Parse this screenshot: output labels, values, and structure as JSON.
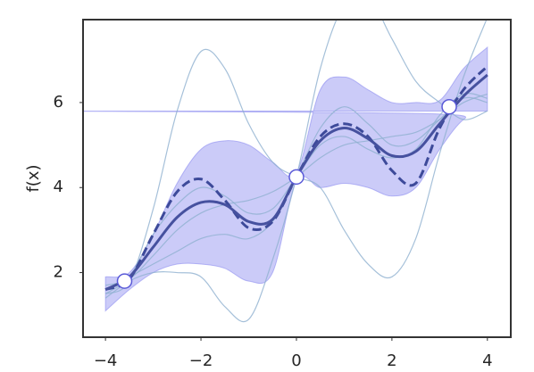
{
  "chart_data": {
    "type": "line",
    "ylabel": "f(x)",
    "x": [
      -4,
      -3.5,
      -3,
      -2.5,
      -2,
      -1.5,
      -1,
      -0.5,
      0,
      0.5,
      1,
      1.5,
      2,
      2.5,
      3,
      3.5,
      4
    ],
    "band": {
      "color": "#8c8cf0",
      "lower": [
        1.1,
        1.6,
        2.0,
        2.2,
        2.2,
        2.1,
        1.8,
        2.0,
        4.15,
        4.0,
        4.1,
        4.0,
        3.8,
        4.0,
        4.9,
        5.6,
        5.8
      ],
      "upper": [
        1.9,
        2.0,
        2.9,
        4.1,
        4.9,
        5.1,
        5.0,
        4.6,
        4.35,
        6.3,
        6.6,
        6.3,
        6.0,
        6.0,
        6.05,
        6.8,
        7.3
      ]
    },
    "series": [
      {
        "style": "thin",
        "color": "#8fb0d0",
        "values": [
          1.5,
          1.8,
          3.5,
          5.8,
          7.2,
          6.8,
          5.5,
          4.6,
          4.25,
          4.0,
          3.0,
          2.2,
          1.9,
          2.8,
          4.8,
          6.6,
          8.0
        ]
      },
      {
        "style": "thin",
        "color": "#8fb0d0",
        "values": [
          1.4,
          1.8,
          2.0,
          2.0,
          1.9,
          1.2,
          0.9,
          2.3,
          4.25,
          6.8,
          8.3,
          8.5,
          7.5,
          6.5,
          6.0,
          5.6,
          5.8
        ]
      },
      {
        "style": "thin",
        "color": "#8fb0d0",
        "values": [
          1.7,
          1.85,
          2.4,
          3.0,
          3.4,
          3.6,
          3.7,
          3.9,
          4.25,
          4.7,
          5.0,
          5.1,
          5.2,
          5.3,
          5.6,
          6.0,
          6.2
        ]
      },
      {
        "style": "thin",
        "color": "#8fb0d0",
        "values": [
          1.6,
          1.9,
          2.2,
          2.5,
          2.8,
          2.9,
          2.8,
          3.2,
          4.25,
          5.4,
          5.9,
          5.5,
          5.0,
          5.1,
          5.6,
          6.1,
          6.0
        ]
      },
      {
        "style": "thin",
        "color": "#8fb0d0",
        "values": [
          1.5,
          1.9,
          2.9,
          3.6,
          4.0,
          3.8,
          3.4,
          3.5,
          4.25,
          5.0,
          5.2,
          4.9,
          4.7,
          4.9,
          5.7,
          6.2,
          6.1
        ]
      },
      {
        "style": "dashed",
        "color": "#3d4a9a",
        "values": [
          1.6,
          1.85,
          2.9,
          3.9,
          4.2,
          3.7,
          3.05,
          3.2,
          4.25,
          5.2,
          5.5,
          5.2,
          4.4,
          4.1,
          5.4,
          6.3,
          6.85
        ]
      },
      {
        "style": "solid",
        "color": "#46519f",
        "values": [
          1.6,
          1.9,
          2.6,
          3.3,
          3.65,
          3.6,
          3.2,
          3.25,
          4.25,
          5.1,
          5.4,
          5.15,
          4.75,
          4.85,
          5.5,
          6.15,
          6.65
        ]
      }
    ],
    "points": {
      "color": "#5a5ad8",
      "x": [
        -3.6,
        0,
        3.2
      ],
      "y": [
        1.8,
        4.25,
        5.9
      ]
    },
    "xlim": [
      -4.47,
      4.49
    ],
    "ylim": [
      0.48,
      7.95
    ],
    "xticks": [
      {
        "value": -4,
        "label": "−4"
      },
      {
        "value": -2,
        "label": "−2"
      },
      0,
      2,
      4
    ],
    "yticks": [
      2,
      4,
      6
    ]
  }
}
